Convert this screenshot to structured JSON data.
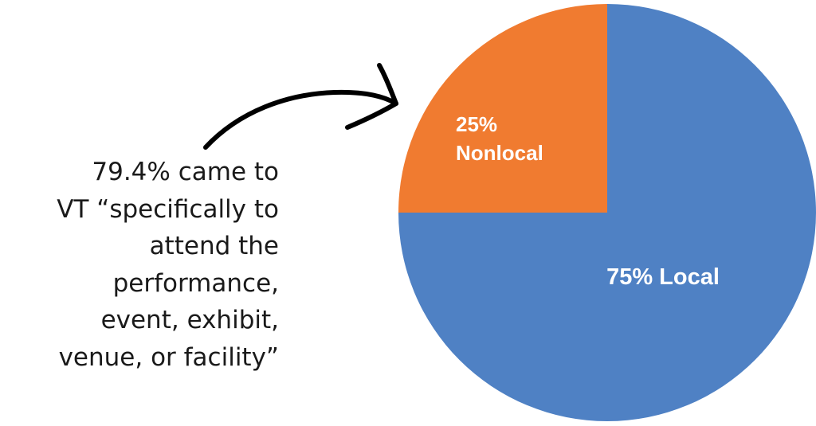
{
  "annotation": {
    "lines": [
      "79.4% came to",
      "VT “specifically to",
      "attend the",
      "performance,",
      "event, exhibit,",
      "venue, or facility”"
    ]
  },
  "chart_data": {
    "type": "pie",
    "title": "",
    "slices": [
      {
        "label": "Local",
        "value": 75,
        "display": "75% Local",
        "color": "#4f81c4"
      },
      {
        "label": "Nonlocal",
        "value": 25,
        "display_lines": [
          "25%",
          "Nonlocal"
        ],
        "color": "#f07b30"
      }
    ]
  }
}
